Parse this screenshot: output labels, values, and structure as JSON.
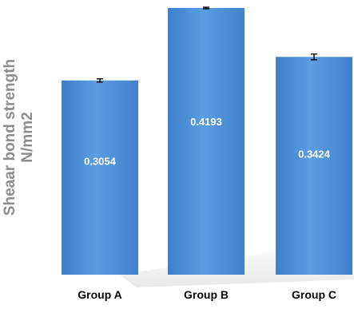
{
  "chart_data": {
    "type": "bar",
    "title": "",
    "xlabel": "",
    "ylabel_line1": "Sheaar bond strength",
    "ylabel_line2": "N/mm2",
    "categories": [
      "Group A",
      "Group B",
      "Group C"
    ],
    "values": [
      0.3054,
      0.4193,
      0.3424
    ],
    "value_labels": [
      "0.3054",
      "0.4193",
      "0.3424"
    ],
    "error": [
      0.0025,
      0.0012,
      0.0045
    ],
    "ylim": [
      0,
      0.4193
    ],
    "grid": false,
    "legend": "none",
    "bar_color": "#4a90d9",
    "error_bar_color": "#000000",
    "label_color": "#ffffff"
  }
}
